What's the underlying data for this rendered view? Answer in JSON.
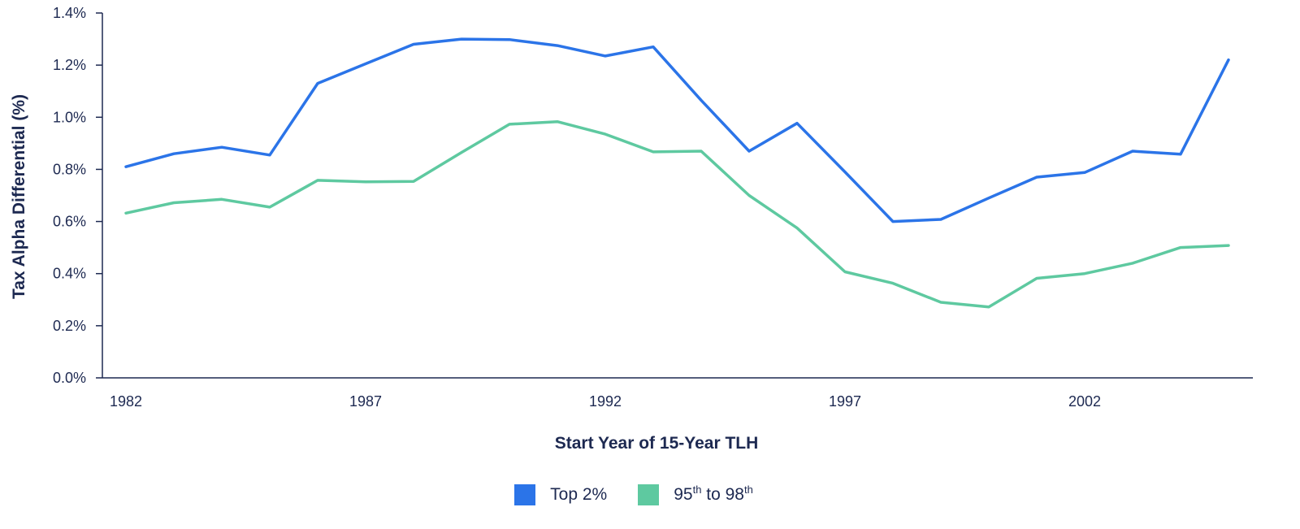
{
  "chart_data": {
    "type": "line",
    "title": "",
    "xlabel": "Start Year of 15-Year TLH",
    "ylabel": "Tax Alpha Differential (%)",
    "x": [
      1982,
      1983,
      1984,
      1985,
      1986,
      1987,
      1988,
      1989,
      1990,
      1991,
      1992,
      1993,
      1994,
      1995,
      1996,
      1997,
      1998,
      1999,
      2000,
      2001,
      2002,
      2003,
      2004,
      2005
    ],
    "x_ticks": [
      "1982",
      "1987",
      "1992",
      "1997",
      "2002"
    ],
    "y_ticks": [
      "0.0%",
      "0.2%",
      "0.4%",
      "0.6%",
      "0.8%",
      "1.0%",
      "1.2%",
      "1.4%"
    ],
    "ylim": [
      0,
      1.4
    ],
    "xlim": [
      1982,
      2005
    ],
    "grid": false,
    "legend_position": "bottom-center",
    "series": [
      {
        "name": "Top 2%",
        "color": "#2b74e8",
        "values": [
          0.81,
          0.86,
          0.885,
          0.855,
          1.13,
          1.205,
          1.28,
          1.3,
          1.298,
          1.275,
          1.235,
          1.27,
          1.065,
          0.87,
          0.977,
          0.79,
          0.6,
          0.608,
          0.69,
          0.77,
          0.788,
          0.87,
          0.858,
          1.22
        ]
      },
      {
        "name": "95th to 98th",
        "color": "#5ec9a0",
        "values": [
          0.632,
          0.672,
          0.685,
          0.655,
          0.758,
          0.752,
          0.754,
          0.865,
          0.973,
          0.983,
          0.935,
          0.867,
          0.87,
          0.7,
          0.575,
          0.407,
          0.363,
          0.29,
          0.272,
          0.382,
          0.4,
          0.44,
          0.5,
          0.508
        ]
      }
    ]
  },
  "legend": [
    {
      "swatch_color": "#2b74e8",
      "label_main": "Top 2%",
      "label_sup1": "",
      "label_mid": "",
      "label_sup2": ""
    },
    {
      "swatch_color": "#5ec9a0",
      "label_main": "95",
      "label_sup1": "th",
      "label_mid": " to 98",
      "label_sup2": "th"
    }
  ]
}
